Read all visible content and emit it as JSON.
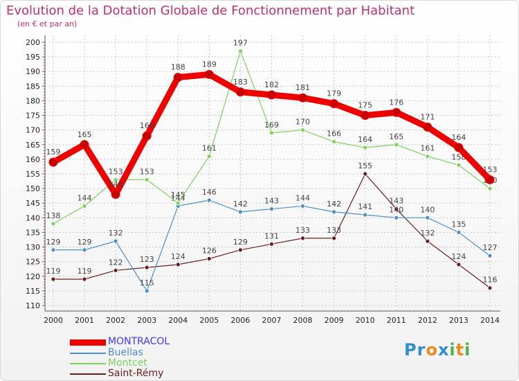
{
  "header": {
    "title": "Evolution de la Dotation Globale de Fonctionnement par Habitant",
    "subtitle": "(en € et par an)"
  },
  "logo": {
    "letters": [
      "P",
      "r",
      "o",
      "x",
      "i",
      "t",
      "i"
    ],
    "colors": [
      "#2f8fd0",
      "#2f8fd0",
      "#f08a1c",
      "#2f8fd0",
      "#4fb24b",
      "#f08a1c",
      "#4fb24b"
    ]
  },
  "chart_data": {
    "type": "line",
    "title": "Evolution de la Dotation Globale de Fonctionnement par Habitant",
    "subtitle": "(en € et par an)",
    "xlabel": "",
    "ylabel": "",
    "x": [
      "2000",
      "2001",
      "2002",
      "2003",
      "2004",
      "2005",
      "2006",
      "2007",
      "2008",
      "2009",
      "2010",
      "2011",
      "2012",
      "2013",
      "2014"
    ],
    "ylim": [
      110,
      200
    ],
    "yticks": [
      110,
      115,
      120,
      125,
      130,
      135,
      140,
      145,
      150,
      155,
      160,
      165,
      170,
      175,
      180,
      185,
      190,
      195,
      200
    ],
    "grid": true,
    "legend_position": "bottom-left",
    "series": [
      {
        "name": "MONTRACOL",
        "color": "#ee0000",
        "values": [
          159,
          165,
          148,
          168,
          188,
          189,
          183,
          182,
          181,
          179,
          175,
          176,
          171,
          164,
          153
        ],
        "labels": [
          "159",
          "165",
          "148",
          "168",
          "188",
          "189",
          "183",
          "182",
          "181",
          "179",
          "175",
          "176",
          "171",
          "164",
          "153"
        ]
      },
      {
        "name": "Buellas",
        "color": "#4a8fc8",
        "values": [
          129,
          129,
          132,
          115,
          144,
          146,
          142,
          143,
          144,
          142,
          141,
          140,
          140,
          135,
          127
        ],
        "labels": [
          "129",
          "129",
          "132",
          "115",
          "144",
          "146",
          "142",
          "143",
          "144",
          "142",
          "141",
          "140",
          "140",
          "135",
          "127"
        ]
      },
      {
        "name": "Montcet",
        "color": "#7fd05a",
        "values": [
          138,
          144,
          153,
          153,
          145,
          161,
          197,
          169,
          170,
          166,
          164,
          165,
          161,
          158,
          150
        ],
        "labels": [
          "138",
          "144",
          "153",
          "153",
          "145",
          "161",
          "197",
          "169",
          "170",
          "166",
          "164",
          "165",
          "161",
          "158",
          "150"
        ]
      },
      {
        "name": "Saint-Rémy",
        "color": "#6a1d1d",
        "values": [
          119,
          119,
          122,
          123,
          124,
          126,
          129,
          131,
          133,
          133,
          155,
          143,
          132,
          124,
          116
        ],
        "labels": [
          "119",
          "119",
          "122",
          "123",
          "124",
          "126",
          "129",
          "131",
          "133",
          "133",
          "155",
          "143",
          "132",
          "124",
          "116"
        ]
      }
    ]
  }
}
